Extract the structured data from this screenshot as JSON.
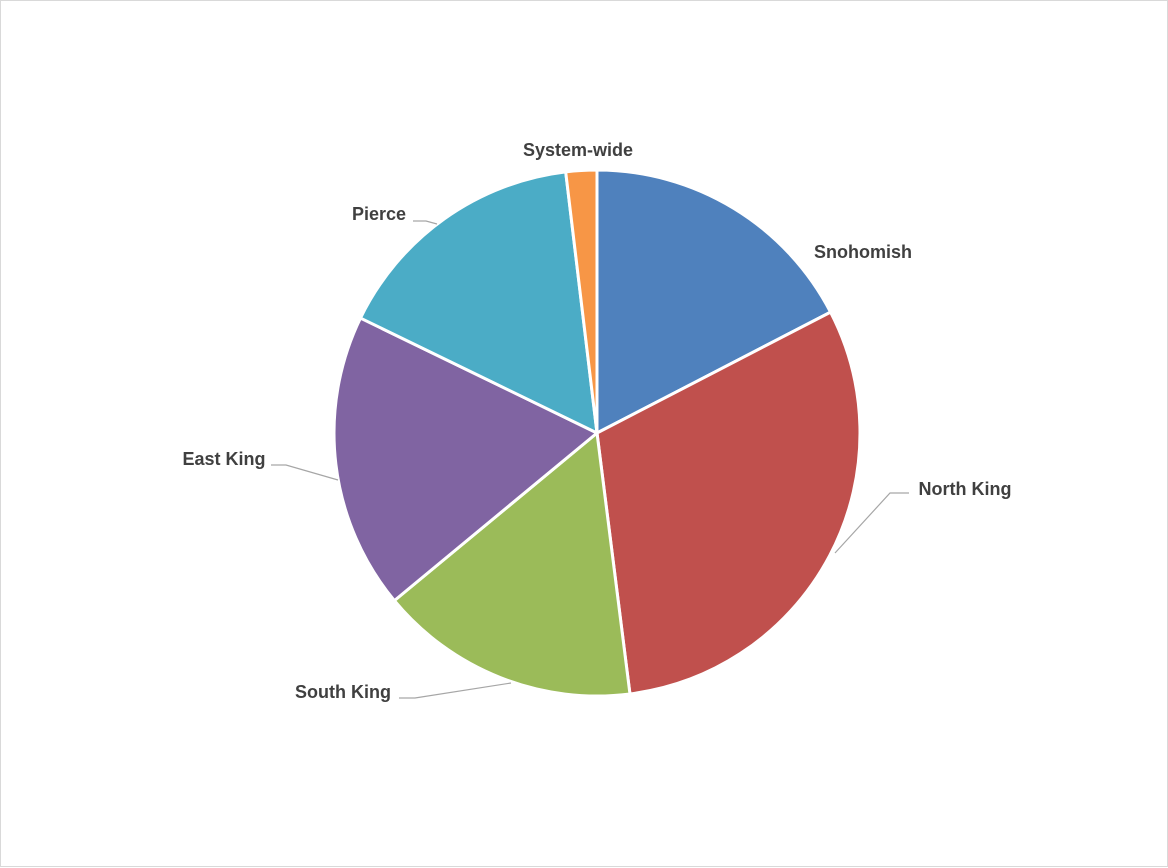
{
  "chart_data": {
    "type": "pie",
    "title": "",
    "start_angle_deg": 0,
    "direction": "clockwise",
    "slices": [
      {
        "label": "Snohomish",
        "value": 17.4,
        "color": "#4f81bd"
      },
      {
        "label": "North King",
        "value": 30.6,
        "color": "#c0504d"
      },
      {
        "label": "South King",
        "value": 16.0,
        "color": "#9bbb59"
      },
      {
        "label": "East King",
        "value": 18.2,
        "color": "#8064a2"
      },
      {
        "label": "Pierce",
        "value": 15.9,
        "color": "#4bacc6"
      },
      {
        "label": "System-wide",
        "value": 1.9,
        "color": "#f79646"
      }
    ],
    "legend": "none",
    "data_labels": "category-name-outside"
  }
}
